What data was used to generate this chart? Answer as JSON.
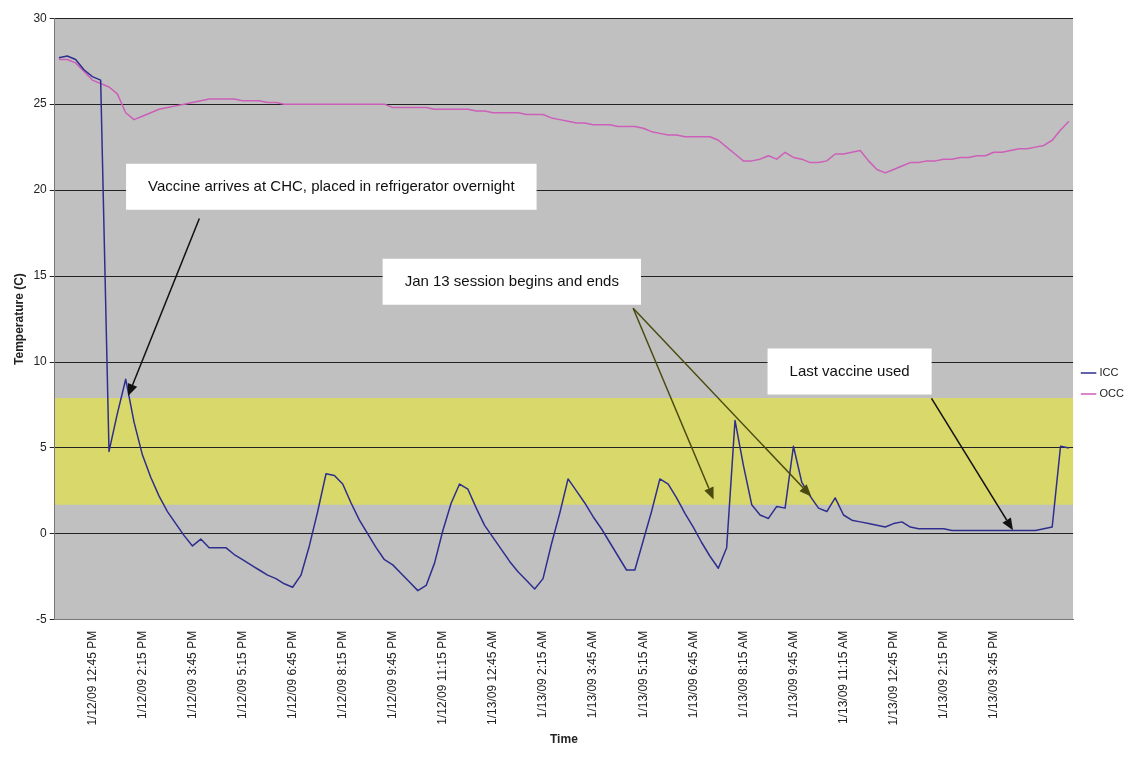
{
  "chart_data": {
    "type": "line",
    "xlabel": "Time",
    "ylabel": "Temperature (C)",
    "categories": [
      null,
      null,
      null,
      null,
      "1/12/09 12:45 PM",
      null,
      null,
      null,
      null,
      null,
      "1/12/09 2:15 PM",
      null,
      null,
      null,
      null,
      null,
      "1/12/09 3:45 PM",
      null,
      null,
      null,
      null,
      null,
      "1/12/09 5:15 PM",
      null,
      null,
      null,
      null,
      null,
      "1/12/09 6:45 PM",
      null,
      null,
      null,
      null,
      null,
      "1/12/09 8:15 PM",
      null,
      null,
      null,
      null,
      null,
      "1/12/09 9:45 PM",
      null,
      null,
      null,
      null,
      null,
      "1/12/09 11:15 PM",
      null,
      null,
      null,
      null,
      null,
      "1/13/09 12:45 AM",
      null,
      null,
      null,
      null,
      null,
      "1/13/09 2:15 AM",
      null,
      null,
      null,
      null,
      null,
      "1/13/09 3:45 AM",
      null,
      null,
      null,
      null,
      null,
      "1/13/09 5:15 AM",
      null,
      null,
      null,
      null,
      null,
      "1/13/09 6:45 AM",
      null,
      null,
      null,
      null,
      null,
      "1/13/09 8:15 AM",
      null,
      null,
      null,
      null,
      null,
      "1/13/09 9:45 AM",
      null,
      null,
      null,
      null,
      null,
      "1/13/09 11:15 AM",
      null,
      null,
      null,
      null,
      null,
      "1/13/09 12:45 PM",
      null,
      null,
      null,
      null,
      null,
      "1/13/09 2:15 PM",
      null,
      null,
      null,
      null,
      null,
      "1/13/09 3:45 PM",
      null,
      null,
      null,
      null,
      null,
      null,
      null,
      null,
      null
    ],
    "ylim": [
      -5,
      30
    ],
    "yticks": [
      -5,
      0,
      5,
      10,
      15,
      20,
      25,
      30
    ],
    "grid": "y",
    "legend": "right",
    "bands": [
      {
        "axis": "y",
        "from": 1.7,
        "to": 7.9,
        "color": "#d9d86a"
      }
    ],
    "series": [
      {
        "name": "ICC",
        "color": "#2e2e8f",
        "values": [
          27.7,
          27.8,
          27.6,
          27.0,
          26.6,
          26.4,
          4.8,
          7.0,
          9.0,
          6.5,
          4.6,
          3.3,
          2.2,
          1.3,
          0.6,
          -0.1,
          -0.7,
          -0.3,
          -0.8,
          -0.8,
          -0.8,
          -1.2,
          -1.5,
          -1.8,
          -2.1,
          -2.4,
          -2.6,
          -2.9,
          -3.1,
          -2.4,
          -0.7,
          1.3,
          3.5,
          3.4,
          2.9,
          1.8,
          0.8,
          0.0,
          -0.8,
          -1.5,
          -1.8,
          -2.3,
          -2.8,
          -3.3,
          -3.0,
          -1.7,
          0.2,
          1.8,
          2.9,
          2.6,
          1.5,
          0.5,
          -0.2,
          -0.9,
          -1.6,
          -2.2,
          -2.7,
          -3.2,
          -2.6,
          -0.6,
          1.2,
          3.2,
          2.5,
          1.8,
          1.0,
          0.3,
          -0.5,
          -1.3,
          -2.1,
          -2.1,
          -0.4,
          1.3,
          3.2,
          2.9,
          2.1,
          1.2,
          0.4,
          -0.5,
          -1.3,
          -2.0,
          -0.8,
          6.6,
          4.0,
          1.7,
          1.1,
          0.9,
          1.6,
          1.5,
          5.1,
          3.0,
          2.2,
          1.5,
          1.3,
          2.1,
          1.1,
          0.8,
          0.7,
          0.6,
          0.5,
          0.4,
          0.6,
          0.7,
          0.4,
          0.3,
          0.3,
          0.3,
          0.3,
          0.2,
          0.2,
          0.2,
          0.2,
          0.2,
          0.2,
          0.2,
          0.2,
          0.2,
          0.2,
          0.2,
          0.3,
          0.4,
          5.1,
          5.0
        ]
      },
      {
        "name": "OCC",
        "color": "#cc5fb8",
        "values": [
          27.6,
          27.6,
          27.4,
          26.9,
          26.4,
          26.2,
          26.0,
          25.6,
          24.5,
          24.1,
          24.3,
          24.5,
          24.7,
          24.8,
          24.9,
          25.0,
          25.1,
          25.2,
          25.3,
          25.3,
          25.3,
          25.3,
          25.2,
          25.2,
          25.2,
          25.1,
          25.1,
          25.0,
          25.0,
          25.0,
          25.0,
          25.0,
          25.0,
          25.0,
          25.0,
          25.0,
          25.0,
          25.0,
          25.0,
          25.0,
          24.8,
          24.8,
          24.8,
          24.8,
          24.8,
          24.7,
          24.7,
          24.7,
          24.7,
          24.7,
          24.6,
          24.6,
          24.5,
          24.5,
          24.5,
          24.5,
          24.4,
          24.4,
          24.4,
          24.2,
          24.1,
          24.0,
          23.9,
          23.9,
          23.8,
          23.8,
          23.8,
          23.7,
          23.7,
          23.7,
          23.6,
          23.4,
          23.3,
          23.2,
          23.2,
          23.1,
          23.1,
          23.1,
          23.1,
          22.9,
          22.5,
          22.1,
          21.7,
          21.7,
          21.8,
          22.0,
          21.8,
          22.2,
          21.9,
          21.8,
          21.6,
          21.6,
          21.7,
          22.1,
          22.1,
          22.2,
          22.3,
          21.7,
          21.2,
          21.0,
          21.2,
          21.4,
          21.6,
          21.6,
          21.7,
          21.7,
          21.8,
          21.8,
          21.9,
          21.9,
          22.0,
          22.0,
          22.2,
          22.2,
          22.3,
          22.4,
          22.4,
          22.5,
          22.6,
          22.9,
          23.5,
          24.0
        ]
      }
    ],
    "annotations": [
      "Vaccine arrives at CHC, placed in refrigerator overnight",
      "Jan 13 session begins and ends",
      "Last vaccine used"
    ]
  }
}
